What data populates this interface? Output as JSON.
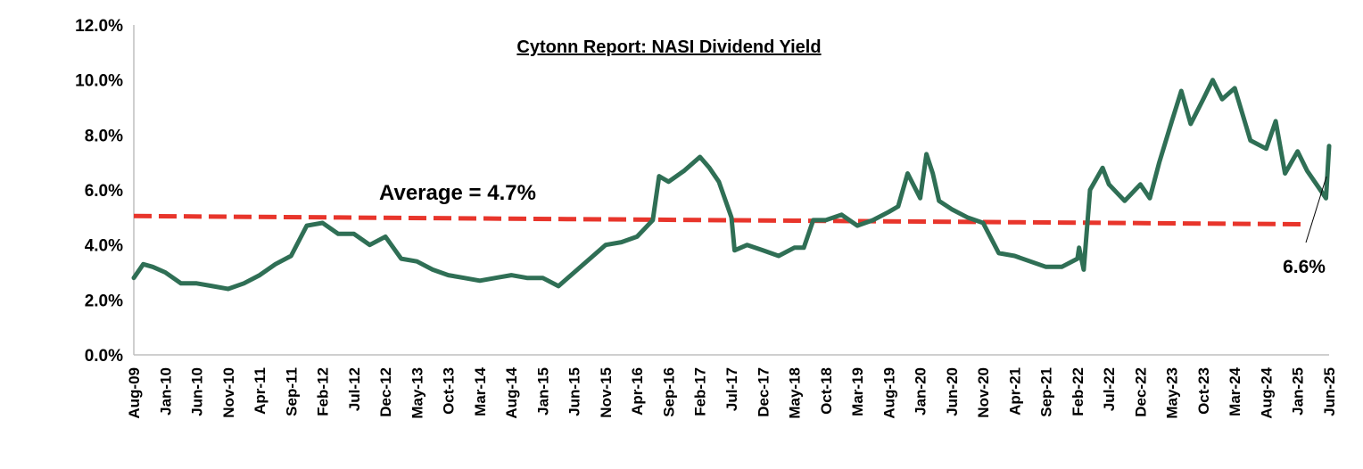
{
  "chart_data": {
    "type": "line",
    "title": "Cytonn Report: NASI Dividend Yield",
    "xlabel": "",
    "ylabel": "",
    "ylim": [
      0,
      12
    ],
    "y_ticks": [
      "0.0%",
      "2.0%",
      "4.0%",
      "6.0%",
      "8.0%",
      "10.0%",
      "12.0%"
    ],
    "x_ticks": [
      "Aug-09",
      "Jan-10",
      "Jun-10",
      "Nov-10",
      "Apr-11",
      "Sep-11",
      "Feb-12",
      "Jul-12",
      "Dec-12",
      "May-13",
      "Oct-13",
      "Mar-14",
      "Aug-14",
      "Jan-15",
      "Jun-15",
      "Nov-15",
      "Apr-16",
      "Sep-16",
      "Feb-17",
      "Jul-17",
      "Dec-17",
      "May-18",
      "Oct-18",
      "Mar-19",
      "Aug-19",
      "Jan-20",
      "Jun-20",
      "Nov-20",
      "Apr-21",
      "Sep-21",
      "Feb-22",
      "Jul-22",
      "Dec-22",
      "May-23",
      "Oct-23",
      "Mar-24",
      "Aug-24",
      "Jan-25",
      "Jun-25"
    ],
    "grid": false,
    "legend": "none",
    "colors": {
      "yield": "#2f6f55",
      "average": "#e8352b"
    },
    "series": [
      {
        "x": [
          0,
          0.3,
          0.6,
          1,
          1.5,
          2,
          2.5,
          3,
          3.5,
          4,
          4.5,
          5,
          5.5,
          6,
          6.5,
          7,
          7.5,
          8,
          8.5,
          9,
          9.5,
          10,
          10.5,
          11,
          11.5,
          12,
          12.5,
          13,
          13.5,
          14,
          14.5,
          15,
          15.5,
          16,
          16.5,
          16.7,
          17,
          17.5,
          18,
          18.3,
          18.6,
          19,
          19.1,
          19.5,
          20,
          20.5,
          21,
          21.3,
          21.6,
          22,
          22.5,
          23,
          23.5,
          24,
          24.3,
          24.6,
          25,
          25.2,
          25.4,
          25.6,
          26,
          26.5,
          27,
          27.5,
          28,
          28.5,
          29,
          29.5,
          30,
          30.05,
          30.2,
          30.4,
          30.8,
          31,
          31.5,
          32,
          32.3,
          32.6,
          33,
          33.3,
          33.6,
          34,
          34.3,
          34.6,
          35,
          35.5,
          36,
          36.3,
          36.6,
          37,
          37.3,
          37.6,
          37.9,
          38
        ],
        "values": [
          2.8,
          3.3,
          3.2,
          3.0,
          2.6,
          2.6,
          2.5,
          2.4,
          2.6,
          2.9,
          3.3,
          3.6,
          4.7,
          4.8,
          4.4,
          4.4,
          4.0,
          4.3,
          3.5,
          3.4,
          3.1,
          2.9,
          2.8,
          2.7,
          2.8,
          2.9,
          2.8,
          2.8,
          2.5,
          3.0,
          3.5,
          4.0,
          4.1,
          4.3,
          4.9,
          6.5,
          6.3,
          6.7,
          7.2,
          6.8,
          6.3,
          5.0,
          3.8,
          4.0,
          3.8,
          3.6,
          3.9,
          3.9,
          4.9,
          4.9,
          5.1,
          4.7,
          4.9,
          5.2,
          5.4,
          6.6,
          5.7,
          7.3,
          6.6,
          5.6,
          5.3,
          5.0,
          4.8,
          3.7,
          3.6,
          3.4,
          3.2,
          3.2,
          3.5,
          3.9,
          3.1,
          6.0,
          6.8,
          6.2,
          5.6,
          6.2,
          5.7,
          7.0,
          8.5,
          9.6,
          8.4,
          9.3,
          10.0,
          9.3,
          9.7,
          7.8,
          7.5,
          8.5,
          6.6,
          7.4,
          6.7,
          6.2,
          5.7,
          7.6
        ]
      },
      {
        "x": [
          0,
          38
        ],
        "values": [
          5.05,
          4.75
        ]
      }
    ],
    "annotations": [
      "Average = 4.7%",
      "6.6%"
    ]
  }
}
